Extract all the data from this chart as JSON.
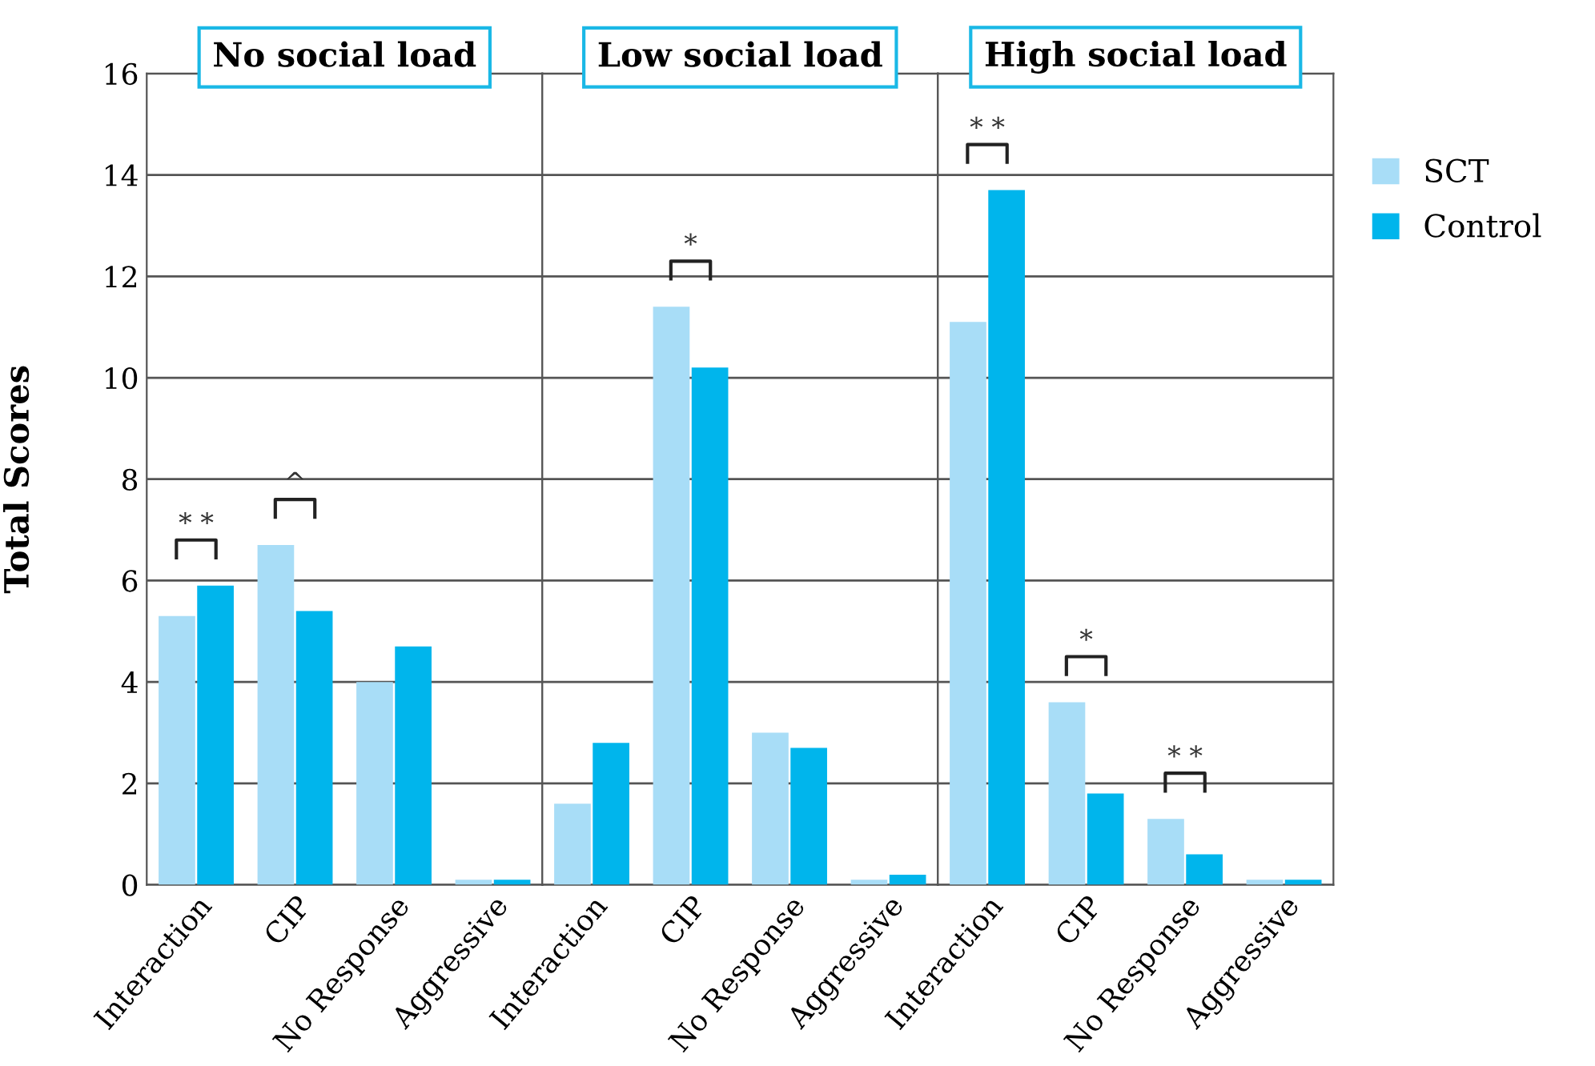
{
  "chart_data": [
    {
      "type": "bar",
      "title": "No social load",
      "ylabel": "Total Scores",
      "categories": [
        "Interaction",
        "CIP",
        "No Response",
        "Aggressive"
      ],
      "series": [
        {
          "color": "#a8ddf7",
          "values": [
            5.3,
            6.7,
            4.0,
            0.1
          ]
        },
        {
          "color": "#00b5ec",
          "values": [
            5.9,
            5.4,
            4.7,
            0.1
          ]
        }
      ],
      "ylim": [
        0,
        16
      ],
      "yticks": [
        0,
        2,
        4,
        6,
        8,
        10,
        12,
        14,
        16
      ],
      "grid": "y",
      "annotations": [
        "* *",
        "^"
      ]
    },
    {
      "type": "bar",
      "title": "Low social load",
      "categories": [
        "Interaction",
        "CIP",
        "No Response",
        "Aggressive"
      ],
      "series": [
        {
          "color": "#a8ddf7",
          "values": [
            1.6,
            11.4,
            3.0,
            0.1
          ]
        },
        {
          "color": "#00b5ec",
          "values": [
            2.8,
            10.2,
            2.7,
            0.2
          ]
        }
      ],
      "ylim": [
        0,
        16
      ],
      "yticks": [
        0,
        2,
        4,
        6,
        8,
        10,
        12,
        14,
        16
      ],
      "grid": "y",
      "tick_labels": "x",
      "annotations": [
        "*"
      ]
    },
    {
      "type": "bar",
      "title": "High social load",
      "categories": [
        "Interaction",
        "CIP",
        "No Response",
        "Aggressive"
      ],
      "series": [
        {
          "name": "SCT",
          "color": "#a8ddf7",
          "values": [
            11.1,
            3.6,
            1.3,
            0.1
          ]
        },
        {
          "name": "Control",
          "color": "#00b5ec",
          "values": [
            13.7,
            1.8,
            0.6,
            0.1
          ]
        }
      ],
      "ylim": [
        0,
        16
      ],
      "yticks": [
        0,
        2,
        4,
        6,
        8,
        10,
        12,
        14,
        16
      ],
      "grid": "y",
      "legend": "right",
      "tick_labels": "x",
      "annotations": [
        "* *",
        "*",
        "* *"
      ]
    }
  ]
}
